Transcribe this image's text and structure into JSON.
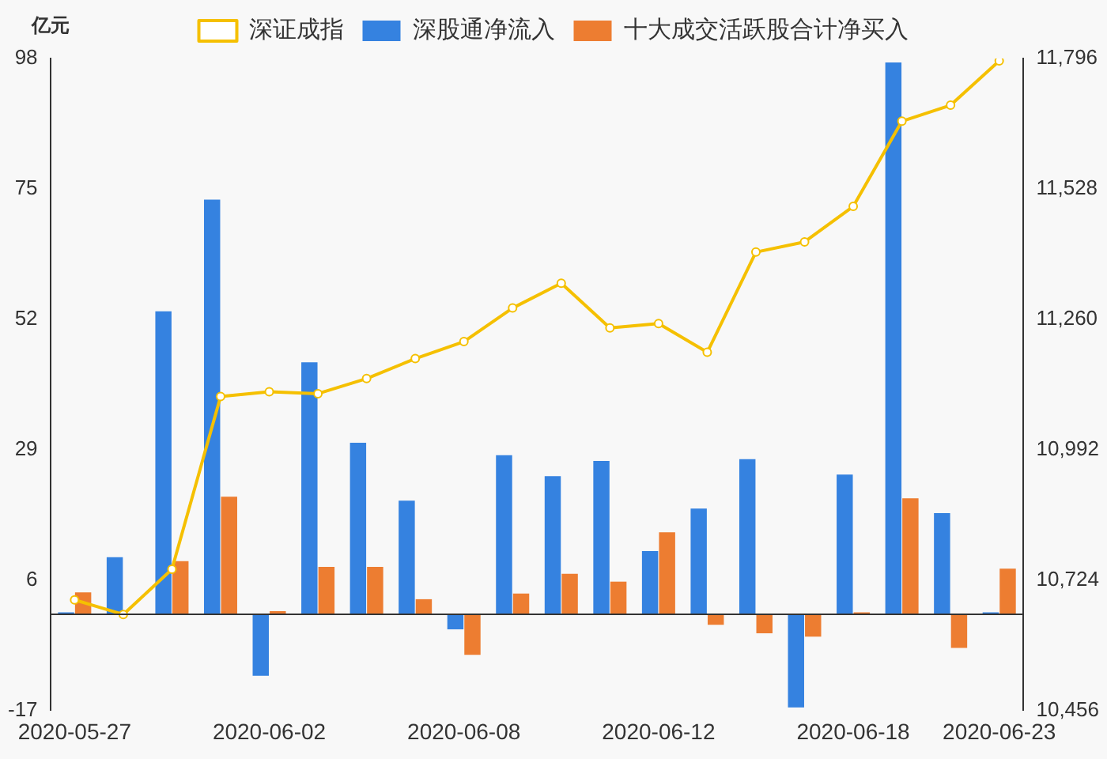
{
  "chart_data": {
    "type": "bar",
    "ylabel": "亿元",
    "legend": "top",
    "grid": false,
    "categories": [
      "2020-05-27",
      null,
      null,
      null,
      "2020-06-02",
      null,
      null,
      null,
      "2020-06-08",
      null,
      null,
      null,
      "2020-06-12",
      null,
      null,
      null,
      "2020-06-18",
      null,
      null,
      "2020-06-23"
    ],
    "ylim": [
      -17,
      98
    ],
    "yticks": [
      -17,
      6,
      29,
      52,
      75,
      98
    ],
    "y2lim": [
      10456,
      11796
    ],
    "y2ticks": [
      {
        "value": 10456,
        "label": "10,456"
      },
      {
        "value": 10724,
        "label": "10,724"
      },
      {
        "value": 10992,
        "label": "10,992"
      },
      {
        "value": 11260,
        "label": "11,260"
      },
      {
        "value": 11528,
        "label": "11,528"
      },
      {
        "value": 11796,
        "label": "11,796"
      }
    ],
    "series": [
      {
        "name": "深股通净流入",
        "color": "#3582e0",
        "values": [
          0.3,
          10,
          53.4,
          73.1,
          -10.9,
          44.4,
          30.2,
          20,
          -2.7,
          28,
          24.3,
          27,
          11.1,
          18.6,
          27.3,
          -16.5,
          24.6,
          97.3,
          17.8,
          0.3
        ]
      },
      {
        "name": "十大成交活跃股合计净买入",
        "color": "#ed7d31",
        "values": [
          3.8,
          0,
          9.3,
          20.7,
          0.5,
          8.3,
          8.3,
          2.6,
          -7.2,
          3.6,
          7.1,
          5.7,
          14.4,
          -1.9,
          -3.4,
          -4,
          0.3,
          20.4,
          -6,
          8
        ]
      },
      {
        "name": "深证成指",
        "type": "line",
        "axis": "y2",
        "color": "#f5c000",
        "marker": "circle",
        "values": [
          10683,
          10653,
          10746,
          11101,
          11111,
          11107,
          11138,
          11179,
          11214,
          11283,
          11334,
          11242,
          11251,
          11192,
          11398,
          11419,
          11492,
          11667,
          11700,
          11791
        ]
      }
    ]
  }
}
